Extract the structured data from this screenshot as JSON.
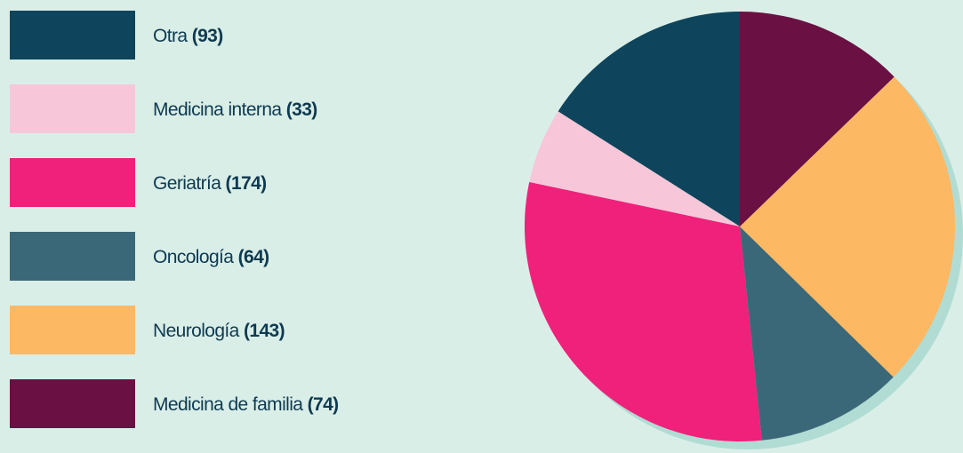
{
  "chart_data": {
    "type": "pie",
    "categories": [
      "Otra",
      "Medicina interna",
      "Geriatría",
      "Oncología",
      "Neurología",
      "Medicina de familia"
    ],
    "values": [
      93,
      33,
      174,
      64,
      143,
      74
    ],
    "value_labels": [
      "(93)",
      "(33)",
      "(174)",
      "(64)",
      "(143)",
      "(74)"
    ],
    "colors": [
      "#0e455c",
      "#f7c7d9",
      "#ef217a",
      "#3b6878",
      "#fdb863",
      "#6a1042"
    ],
    "legend": "left"
  }
}
